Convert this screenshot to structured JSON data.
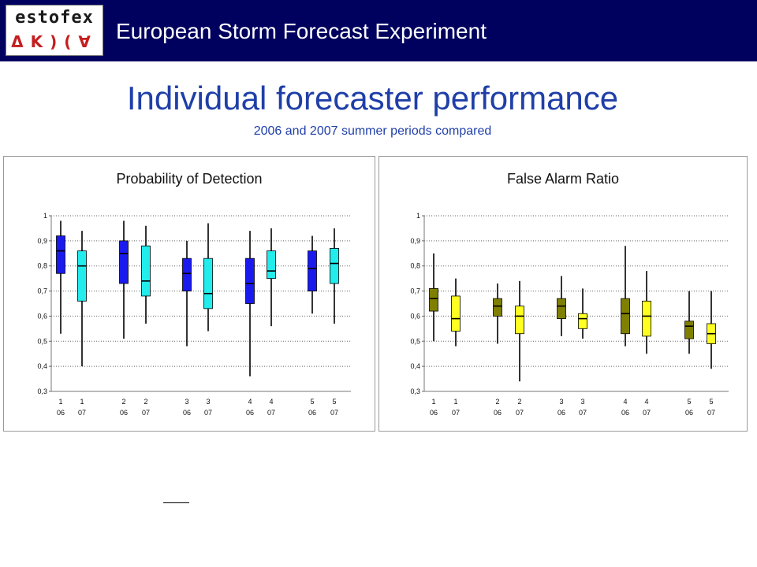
{
  "header": {
    "logo_top": "estofex",
    "logo_bottom": "ΔΚ)(∀",
    "brand": "European Storm Forecast Experiment"
  },
  "slide": {
    "title": "Individual forecaster performance",
    "subtitle": "2006 and 2007 summer periods compared"
  },
  "chart_data": [
    {
      "type": "boxplot",
      "title": "Probability of Detection",
      "ylim": [
        0.3,
        1.0
      ],
      "yticks": [
        "0,3",
        "0,4",
        "0,5",
        "0,6",
        "0,7",
        "0,8",
        "0,9",
        "1"
      ],
      "grid": true,
      "categories": [
        {
          "forecaster": "1",
          "year": "06"
        },
        {
          "forecaster": "1",
          "year": "07"
        },
        {
          "forecaster": "2",
          "year": "06"
        },
        {
          "forecaster": "2",
          "year": "07"
        },
        {
          "forecaster": "3",
          "year": "06"
        },
        {
          "forecaster": "3",
          "year": "07"
        },
        {
          "forecaster": "4",
          "year": "06"
        },
        {
          "forecaster": "4",
          "year": "07"
        },
        {
          "forecaster": "5",
          "year": "06"
        },
        {
          "forecaster": "5",
          "year": "07"
        }
      ],
      "colors": {
        "06": "#1a1aee",
        "07": "#22ecec"
      },
      "boxes": [
        {
          "min": 0.53,
          "q1": 0.77,
          "median": 0.86,
          "q3": 0.92,
          "max": 0.98
        },
        {
          "min": 0.4,
          "q1": 0.66,
          "median": 0.8,
          "q3": 0.86,
          "max": 0.94
        },
        {
          "min": 0.51,
          "q1": 0.73,
          "median": 0.85,
          "q3": 0.9,
          "max": 0.98
        },
        {
          "min": 0.57,
          "q1": 0.68,
          "median": 0.74,
          "q3": 0.88,
          "max": 0.96
        },
        {
          "min": 0.48,
          "q1": 0.7,
          "median": 0.77,
          "q3": 0.83,
          "max": 0.9
        },
        {
          "min": 0.54,
          "q1": 0.63,
          "median": 0.69,
          "q3": 0.83,
          "max": 0.97
        },
        {
          "min": 0.36,
          "q1": 0.65,
          "median": 0.73,
          "q3": 0.83,
          "max": 0.94
        },
        {
          "min": 0.56,
          "q1": 0.75,
          "median": 0.78,
          "q3": 0.86,
          "max": 0.95
        },
        {
          "min": 0.61,
          "q1": 0.7,
          "median": 0.79,
          "q3": 0.86,
          "max": 0.92
        },
        {
          "min": 0.57,
          "q1": 0.73,
          "median": 0.81,
          "q3": 0.87,
          "max": 0.95
        }
      ]
    },
    {
      "type": "boxplot",
      "title": "False Alarm Ratio",
      "ylim": [
        0.3,
        1.0
      ],
      "yticks": [
        "0,3",
        "0,4",
        "0,5",
        "0,6",
        "0,7",
        "0,8",
        "0,9",
        "1"
      ],
      "grid": true,
      "categories": [
        {
          "forecaster": "1",
          "year": "06"
        },
        {
          "forecaster": "1",
          "year": "07"
        },
        {
          "forecaster": "2",
          "year": "06"
        },
        {
          "forecaster": "2",
          "year": "07"
        },
        {
          "forecaster": "3",
          "year": "06"
        },
        {
          "forecaster": "3",
          "year": "07"
        },
        {
          "forecaster": "4",
          "year": "06"
        },
        {
          "forecaster": "4",
          "year": "07"
        },
        {
          "forecaster": "5",
          "year": "06"
        },
        {
          "forecaster": "5",
          "year": "07"
        }
      ],
      "colors": {
        "06": "#808000",
        "07": "#ffff22"
      },
      "boxes": [
        {
          "min": 0.5,
          "q1": 0.62,
          "median": 0.67,
          "q3": 0.71,
          "max": 0.85
        },
        {
          "min": 0.48,
          "q1": 0.54,
          "median": 0.59,
          "q3": 0.68,
          "max": 0.75
        },
        {
          "min": 0.49,
          "q1": 0.6,
          "median": 0.64,
          "q3": 0.67,
          "max": 0.73
        },
        {
          "min": 0.34,
          "q1": 0.53,
          "median": 0.6,
          "q3": 0.64,
          "max": 0.74
        },
        {
          "min": 0.52,
          "q1": 0.59,
          "median": 0.64,
          "q3": 0.67,
          "max": 0.76
        },
        {
          "min": 0.51,
          "q1": 0.55,
          "median": 0.59,
          "q3": 0.61,
          "max": 0.71
        },
        {
          "min": 0.48,
          "q1": 0.53,
          "median": 0.61,
          "q3": 0.67,
          "max": 0.88
        },
        {
          "min": 0.45,
          "q1": 0.52,
          "median": 0.6,
          "q3": 0.66,
          "max": 0.78
        },
        {
          "min": 0.45,
          "q1": 0.51,
          "median": 0.56,
          "q3": 0.58,
          "max": 0.7
        },
        {
          "min": 0.39,
          "q1": 0.49,
          "median": 0.53,
          "q3": 0.57,
          "max": 0.7
        }
      ]
    }
  ]
}
